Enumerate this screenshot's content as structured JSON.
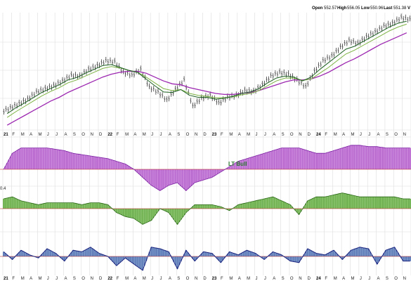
{
  "header": {
    "open_label": "Open",
    "open_value": "552.57",
    "high_label": "High",
    "high_value": "556.05",
    "low_label": "Low",
    "low_value": "550.96",
    "last_label": "Last",
    "last_value": "551.38",
    "vol_label": "V"
  },
  "colors": {
    "price_bars": "#222222",
    "ma_short": "#1b5e20",
    "ma_mid": "#7cb342",
    "ma_long": "#9c27b0",
    "lt_fill": "#c77dd9",
    "lt_stroke": "#7b1fa2",
    "mt_fill": "#7fbf5f",
    "mt_stroke": "#2e6b1a",
    "st_fill": "#6f8fc4",
    "st_stroke": "#1a237e",
    "grid": "#dddddd",
    "zero_line": "#b71c1c"
  },
  "axis": {
    "month_labels": [
      "21",
      "F",
      "M",
      "A",
      "M",
      "J",
      "J",
      "A",
      "S",
      "O",
      "N",
      "D",
      "22",
      "F",
      "M",
      "A",
      "M",
      "J",
      "J",
      "A",
      "S",
      "O",
      "N",
      "D",
      "23",
      "F",
      "M",
      "A",
      "M",
      "J",
      "J",
      "A",
      "S",
      "O",
      "N",
      "D",
      "24",
      "F",
      "M",
      "A",
      "M",
      "J",
      "J",
      "A",
      "S",
      "O",
      "N",
      "D"
    ]
  },
  "annotations": {
    "lt_label": "LT Bull",
    "mt_tick": "0.4"
  },
  "chart_data": {
    "type": "bar",
    "x_start": "2021-01",
    "x_end": "2024-11",
    "price": {
      "monthly_close": [
        372,
        381,
        390,
        405,
        412,
        418,
        428,
        440,
        438,
        452,
        460,
        470,
        468,
        446,
        440,
        452,
        415,
        405,
        388,
        410,
        430,
        375,
        392,
        398,
        382,
        394,
        398,
        408,
        406,
        420,
        438,
        446,
        442,
        430,
        416,
        448,
        470,
        480,
        498,
        512,
        506,
        520,
        530,
        542,
        548,
        560,
        556
      ],
      "ma_short": [
        360,
        372,
        382,
        393,
        404,
        412,
        420,
        430,
        435,
        444,
        452,
        460,
        462,
        456,
        450,
        446,
        432,
        418,
        405,
        404,
        410,
        398,
        394,
        394,
        390,
        392,
        396,
        402,
        405,
        412,
        424,
        434,
        438,
        436,
        428,
        436,
        452,
        466,
        480,
        494,
        500,
        510,
        520,
        530,
        540,
        548,
        552
      ],
      "ma_mid": [
        352,
        364,
        375,
        386,
        397,
        406,
        414,
        424,
        430,
        438,
        446,
        454,
        458,
        455,
        450,
        446,
        436,
        424,
        412,
        408,
        410,
        402,
        398,
        396,
        393,
        393,
        395,
        399,
        402,
        408,
        418,
        428,
        434,
        434,
        429,
        432,
        444,
        456,
        470,
        484,
        492,
        502,
        512,
        522,
        532,
        540,
        546
      ],
      "ma_long": [
        336,
        346,
        356,
        366,
        376,
        386,
        394,
        404,
        412,
        420,
        428,
        436,
        442,
        446,
        448,
        448,
        444,
        436,
        428,
        422,
        420,
        414,
        410,
        406,
        402,
        400,
        400,
        402,
        404,
        408,
        414,
        420,
        426,
        430,
        430,
        432,
        438,
        446,
        456,
        466,
        474,
        484,
        494,
        504,
        512,
        520,
        528
      ]
    },
    "long_term": {
      "name": "LT Bull",
      "values": [
        0.0,
        0.6,
        0.8,
        0.8,
        0.8,
        0.8,
        0.75,
        0.7,
        0.6,
        0.55,
        0.5,
        0.45,
        0.4,
        0.3,
        0.2,
        0.0,
        -0.3,
        -0.6,
        -0.8,
        -0.6,
        -0.5,
        -0.8,
        -0.5,
        -0.4,
        -0.3,
        -0.1,
        0.1,
        0.3,
        0.4,
        0.5,
        0.6,
        0.7,
        0.8,
        0.8,
        0.8,
        0.7,
        0.6,
        0.6,
        0.7,
        0.8,
        0.9,
        0.9,
        0.85,
        0.85,
        0.8,
        0.8,
        0.8
      ]
    },
    "medium_term": {
      "values": [
        0.5,
        0.6,
        0.4,
        0.3,
        0.2,
        0.3,
        0.3,
        0.3,
        0.3,
        0.2,
        0.3,
        0.3,
        0.2,
        -0.2,
        -0.4,
        -0.5,
        -0.8,
        -0.6,
        0.0,
        -0.2,
        -0.8,
        -0.2,
        0.2,
        0.2,
        0.2,
        0.1,
        -0.1,
        0.2,
        0.3,
        0.4,
        0.5,
        0.6,
        0.4,
        0.2,
        -0.3,
        0.4,
        0.6,
        0.6,
        0.7,
        0.8,
        0.7,
        0.6,
        0.6,
        0.6,
        0.6,
        0.6,
        0.5
      ]
    },
    "short_term": {
      "values": [
        0.3,
        -0.2,
        0.4,
        0.1,
        -0.1,
        0.5,
        0.2,
        -0.3,
        0.4,
        0.3,
        0.6,
        0.2,
        0.0,
        -0.6,
        -0.1,
        -0.5,
        -0.9,
        0.6,
        0.5,
        0.3,
        -0.8,
        0.4,
        -0.3,
        0.3,
        0.2,
        -0.4,
        0.3,
        0.1,
        0.4,
        0.2,
        -0.2,
        0.3,
        0.1,
        -0.3,
        -0.4,
        0.5,
        0.2,
        0.1,
        0.4,
        -0.2,
        0.4,
        0.6,
        0.5,
        -0.5,
        0.4,
        0.6,
        -0.3
      ]
    }
  }
}
